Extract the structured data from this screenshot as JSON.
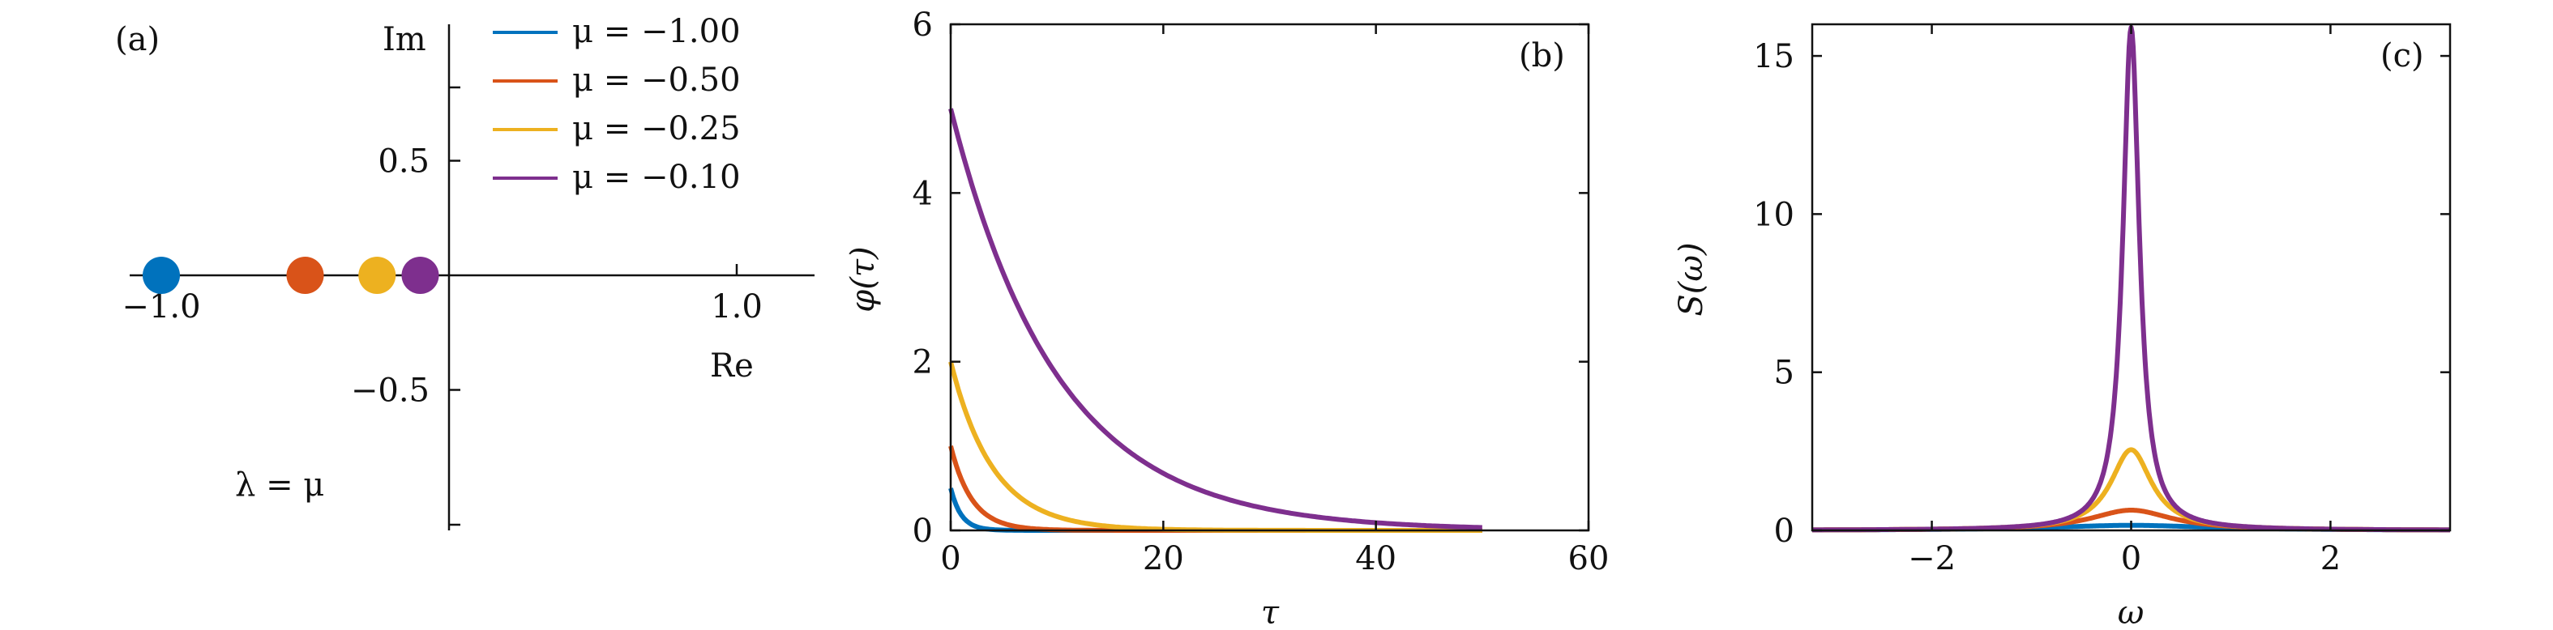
{
  "colors": {
    "blue": "#0072bd",
    "orange": "#d95319",
    "yellow": "#edb120",
    "purple": "#7e2f8e"
  },
  "panels": {
    "a": {
      "label": "(a)",
      "im": "Im",
      "re": "Re",
      "relation": "λ = μ",
      "ticks": {
        "x_neg": "−1.0",
        "x_pos": "1.0",
        "y_pos": "0.5",
        "y_neg": "−0.5"
      }
    },
    "b": {
      "label": "(b)",
      "xlabel": "τ",
      "ylabel": "φ(τ)"
    },
    "c": {
      "label": "(c)",
      "xlabel": "ω",
      "ylabel": "S(ω)"
    }
  },
  "chart_data": [
    {
      "type": "scatter",
      "panel": "a",
      "x_name": "Re",
      "y_name": "Im",
      "xlim": [
        -1.1,
        1.1
      ],
      "ylim": [
        -1.0,
        1.0
      ],
      "points": [
        {
          "re": -1.0,
          "im": 0,
          "color": "blue"
        },
        {
          "re": -0.5,
          "im": 0,
          "color": "orange"
        },
        {
          "re": -0.25,
          "im": 0,
          "color": "yellow"
        },
        {
          "re": -0.1,
          "im": 0,
          "color": "purple"
        }
      ],
      "legend": [
        {
          "label": "μ = −1.00",
          "color": "blue"
        },
        {
          "label": "μ = −0.50",
          "color": "orange"
        },
        {
          "label": "μ = −0.25",
          "color": "yellow"
        },
        {
          "label": "μ = −0.10",
          "color": "purple"
        }
      ]
    },
    {
      "type": "line",
      "panel": "b",
      "xlim": [
        0,
        60
      ],
      "ylim": [
        0,
        6
      ],
      "xticks": [
        0,
        20,
        40,
        60
      ],
      "yticks": [
        0,
        2,
        4,
        6
      ],
      "series": [
        {
          "mu": -1.0,
          "amp": 0.5,
          "rate": 1.0,
          "tmax": 50,
          "color": "blue"
        },
        {
          "mu": -0.5,
          "amp": 1.0,
          "rate": 0.5,
          "tmax": 50,
          "color": "orange"
        },
        {
          "mu": -0.25,
          "amp": 2.0,
          "rate": 0.25,
          "tmax": 50,
          "color": "yellow"
        },
        {
          "mu": -0.1,
          "amp": 5.0,
          "rate": 0.1,
          "tmax": 50,
          "color": "purple"
        }
      ]
    },
    {
      "type": "line",
      "panel": "c",
      "xlim": [
        -3.2,
        3.2
      ],
      "ylim": [
        0,
        16
      ],
      "xticks": [
        -2,
        0,
        2
      ],
      "yticks": [
        0,
        5,
        10,
        15
      ],
      "series": [
        {
          "mu": -1.0,
          "peak": 0.16,
          "width": 1.0,
          "color": "blue"
        },
        {
          "mu": -0.5,
          "peak": 0.64,
          "width": 0.5,
          "color": "orange"
        },
        {
          "mu": -0.25,
          "peak": 2.55,
          "width": 0.25,
          "color": "yellow"
        },
        {
          "mu": -0.1,
          "peak": 15.9,
          "width": 0.1,
          "color": "purple"
        }
      ]
    }
  ]
}
